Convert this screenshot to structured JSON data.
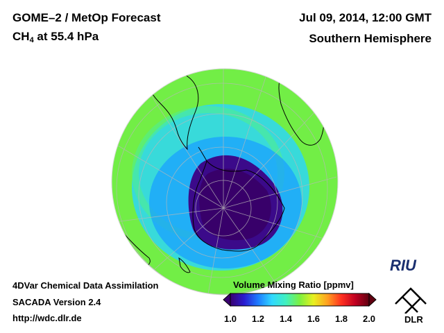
{
  "header": {
    "title_line1": "GOME–2 / MetOp Forecast",
    "species": "CH",
    "species_sub": "4",
    "level": " at 55.4 hPa",
    "datetime": "Jul 09, 2014, 12:00 GMT",
    "hemisphere": "Southern Hemisphere"
  },
  "footer": {
    "line1": "4DVar Chemical Data Assimilation",
    "line2": "SACADA Version 2.4",
    "line3": "http://wdc.dlr.de"
  },
  "colorbar": {
    "title": "Volume Mixing Ratio [ppmv]",
    "ticks": [
      "1.0",
      "1.2",
      "1.4",
      "1.6",
      "1.8",
      "2.0"
    ],
    "min": 1.0,
    "max": 2.0,
    "colors": [
      "#3a0070",
      "#2a1cd0",
      "#1e7bff",
      "#30d8ff",
      "#40f0c0",
      "#7cf040",
      "#e8f020",
      "#ffa020",
      "#ff3020",
      "#c00020",
      "#600010"
    ]
  },
  "logos": {
    "riu": "RIU",
    "dlr": "DLR"
  },
  "map": {
    "projection": "orthographic, south pole view",
    "outer_value_ppmv": 1.55,
    "inner_value_ppmv": 1.05
  }
}
